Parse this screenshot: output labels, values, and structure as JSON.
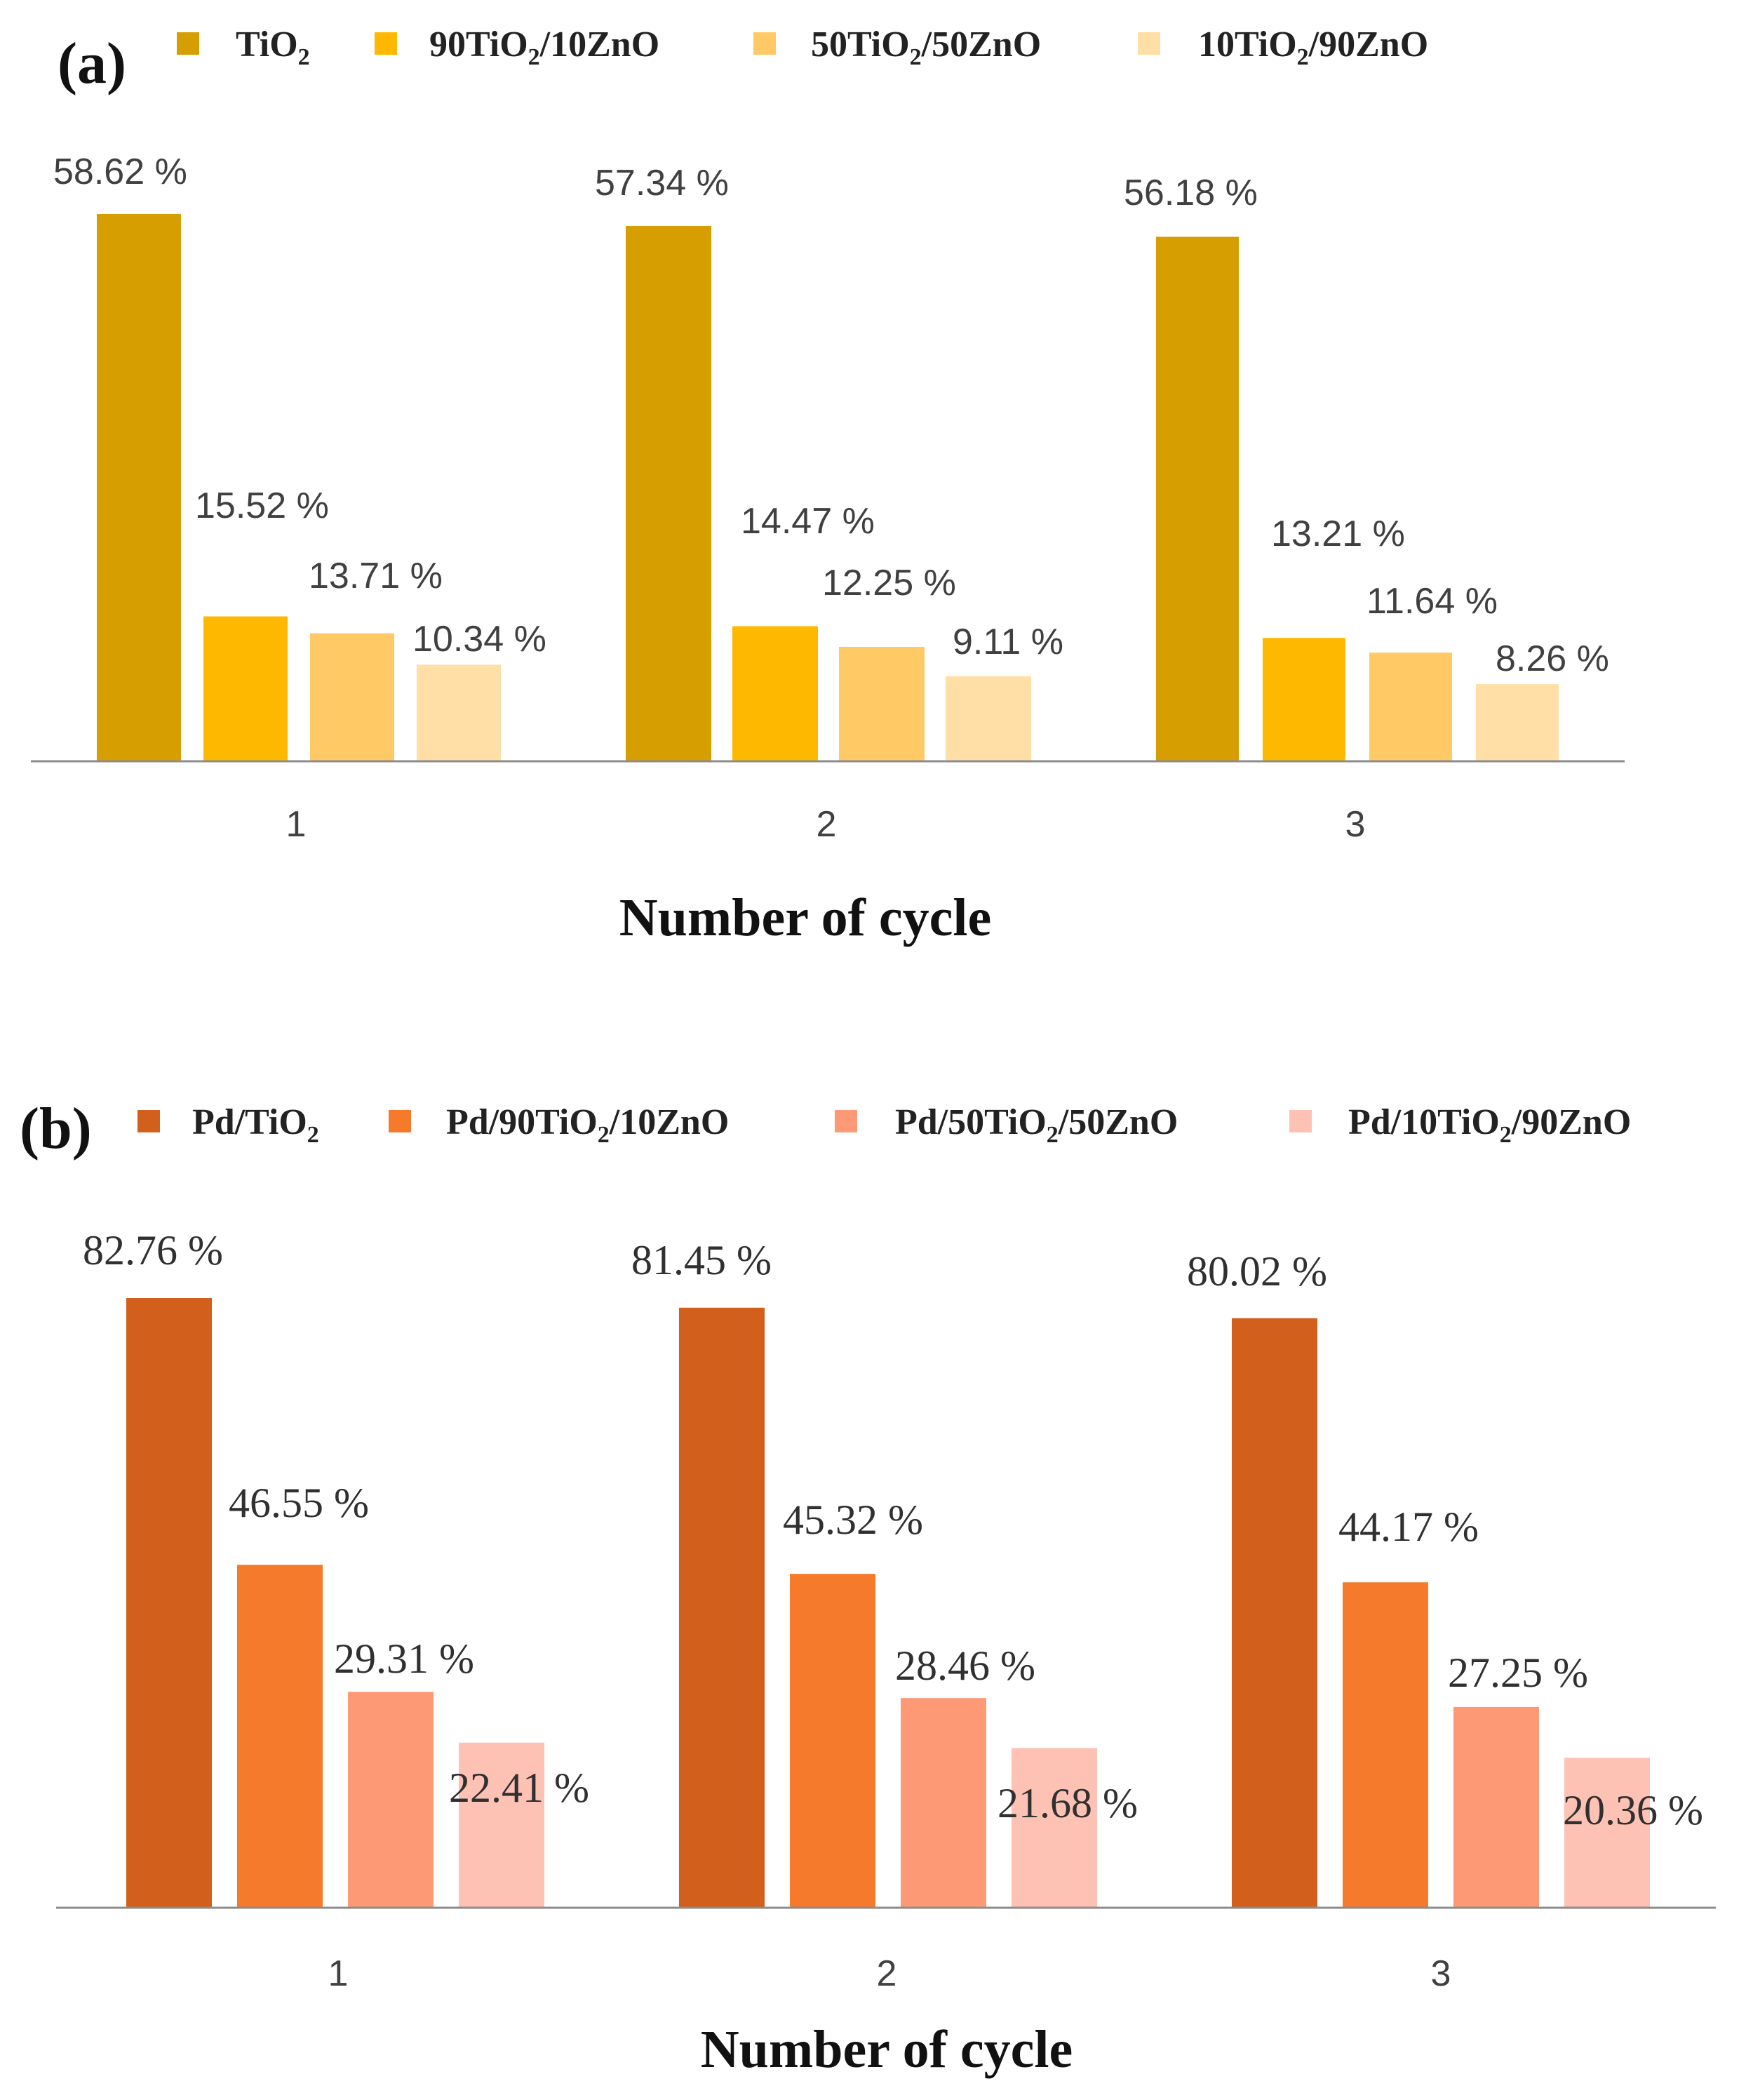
{
  "chart_data": [
    {
      "panel": "(a)",
      "type": "bar",
      "categories": [
        "1",
        "2",
        "3"
      ],
      "series": [
        {
          "name": "TiO",
          "sub": "2",
          "suffix": "",
          "color": "#D69E00",
          "values": [
            58.62,
            57.34,
            56.18
          ],
          "labels": [
            "58.62 %",
            "57.34 %",
            "56.18 %"
          ]
        },
        {
          "name": "90TiO",
          "sub": "2",
          "suffix": "/10ZnO",
          "color": "#FFB800",
          "values": [
            15.52,
            14.47,
            13.21
          ],
          "labels": [
            "15.52 %",
            "14.47 %",
            "13.21 %"
          ]
        },
        {
          "name": "50TiO",
          "sub": "2",
          "suffix": "/50ZnO",
          "color": "#FFCA66",
          "values": [
            13.71,
            12.25,
            11.64
          ],
          "labels": [
            "13.71 %",
            "12.25 %",
            "11.64 %"
          ]
        },
        {
          "name": "10TiO",
          "sub": "2",
          "suffix": "/90ZnO",
          "color": "#FFDFA6",
          "values": [
            10.34,
            9.11,
            8.26
          ],
          "labels": [
            "10.34 %",
            "9.11 %",
            "8.26 %"
          ]
        }
      ],
      "xlabel": "Number of cycle",
      "ylabel": "",
      "ylim": [
        0,
        60
      ],
      "grid": false,
      "legend": "top"
    },
    {
      "panel": "(b)",
      "type": "bar",
      "categories": [
        "1",
        "2",
        "3"
      ],
      "series": [
        {
          "name": "Pd/TiO",
          "sub": "2",
          "suffix": "",
          "color": "#D2601C",
          "values": [
            82.76,
            81.45,
            80.02
          ],
          "labels": [
            "82.76 %",
            "81.45 %",
            "80.02 %"
          ]
        },
        {
          "name": "Pd/90TiO",
          "sub": "2",
          "suffix": "/10ZnO",
          "color": "#F57A2B",
          "values": [
            46.55,
            45.32,
            44.17
          ],
          "labels": [
            "46.55 %",
            "45.32 %",
            "44.17 %"
          ]
        },
        {
          "name": "Pd/50TiO",
          "sub": "2",
          "suffix": "/50ZnO",
          "color": "#FD9A75",
          "values": [
            29.31,
            28.46,
            27.25
          ],
          "labels": [
            "29.31 %",
            "28.46 %",
            "27.25 %"
          ]
        },
        {
          "name": "Pd/10TiO",
          "sub": "2",
          "suffix": "/90ZnO",
          "color": "#FEC2B4",
          "values": [
            22.41,
            21.68,
            20.36
          ],
          "labels": [
            "22.41 %",
            "21.68 %",
            "20.36 %"
          ]
        }
      ],
      "xlabel": "Number of cycle",
      "ylabel": "",
      "ylim": [
        0,
        85
      ],
      "grid": false,
      "legend": "top"
    }
  ]
}
